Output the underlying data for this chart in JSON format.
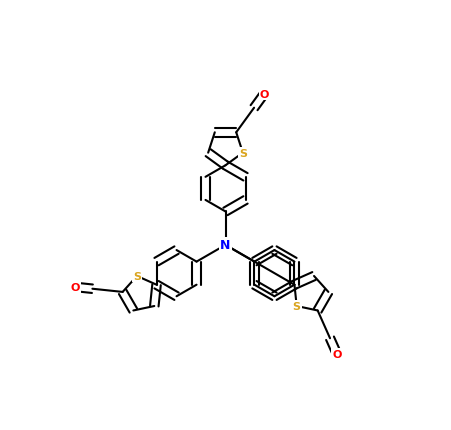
{
  "bg_color": "#ffffff",
  "bond_color": "#000000",
  "bond_width": 1.5,
  "atom_colors": {
    "N": "#0000ff",
    "S": "#DAA520",
    "O": "#ff0000"
  },
  "fig_width": 4.51,
  "fig_height": 4.31
}
